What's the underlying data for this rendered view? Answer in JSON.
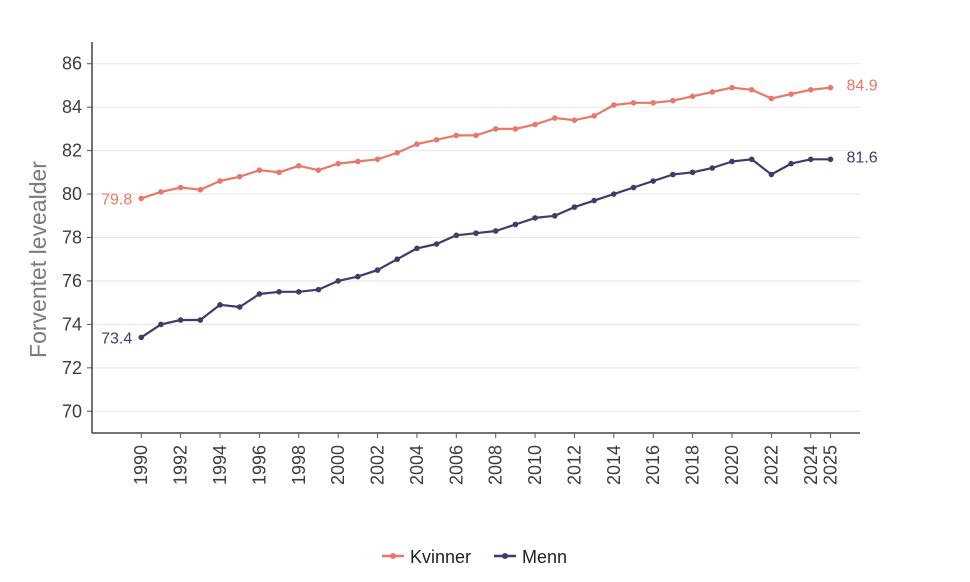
{
  "chart_data": {
    "type": "line",
    "ylabel": "Forventet levealder",
    "xlabel": "",
    "ylim": [
      69,
      87
    ],
    "yticks": [
      70,
      72,
      74,
      76,
      78,
      80,
      82,
      84,
      86
    ],
    "xlim": [
      1987.5,
      2026.5
    ],
    "xticks": [
      1990,
      1992,
      1994,
      1996,
      1998,
      2000,
      2002,
      2004,
      2006,
      2008,
      2010,
      2012,
      2014,
      2016,
      2018,
      2020,
      2022,
      2024,
      2025
    ],
    "x": [
      1990,
      1991,
      1992,
      1993,
      1994,
      1995,
      1996,
      1997,
      1998,
      1999,
      2000,
      2001,
      2002,
      2003,
      2004,
      2005,
      2006,
      2007,
      2008,
      2009,
      2010,
      2011,
      2012,
      2013,
      2014,
      2015,
      2016,
      2017,
      2018,
      2019,
      2020,
      2021,
      2022,
      2023,
      2024,
      2025
    ],
    "grid": "horizontal",
    "legend_position": "bottom-center",
    "series": [
      {
        "name": "Kvinner",
        "color": "#e8786a",
        "values": [
          79.8,
          80.1,
          80.3,
          80.2,
          80.6,
          80.8,
          81.1,
          81.0,
          81.3,
          81.1,
          81.4,
          81.5,
          81.6,
          81.9,
          82.3,
          82.5,
          82.7,
          82.7,
          83.0,
          83.0,
          83.2,
          83.5,
          83.4,
          83.6,
          84.1,
          84.2,
          84.2,
          84.3,
          84.5,
          84.7,
          84.9,
          84.8,
          84.4,
          84.6,
          84.8,
          84.9
        ],
        "start_label": "79.8",
        "end_label": "84.9"
      },
      {
        "name": "Menn",
        "color": "#3c3d6b",
        "values": [
          73.4,
          74.0,
          74.2,
          74.2,
          74.9,
          74.8,
          75.4,
          75.5,
          75.5,
          75.6,
          76.0,
          76.2,
          76.5,
          77.0,
          77.5,
          77.7,
          78.1,
          78.2,
          78.3,
          78.6,
          78.9,
          79.0,
          79.4,
          79.7,
          80.0,
          80.3,
          80.6,
          80.9,
          81.0,
          81.2,
          81.5,
          81.6,
          80.9,
          81.4,
          81.6,
          81.6
        ],
        "start_label": "73.4",
        "end_label": "81.6"
      }
    ]
  }
}
